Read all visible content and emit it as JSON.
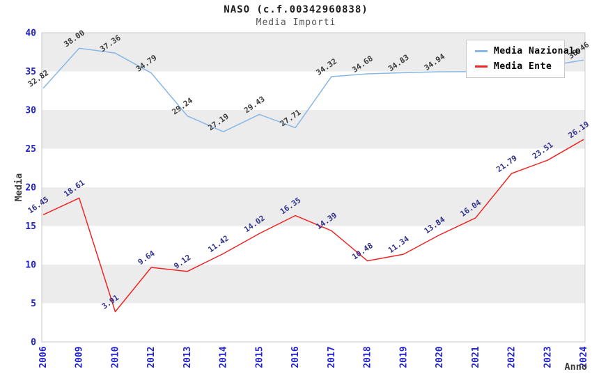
{
  "chart_data": {
    "type": "line",
    "title": "NASO (c.f.00342960838)",
    "subtitle": "Media Importi",
    "xlabel": "Anno",
    "ylabel": "Media",
    "ylim": [
      0,
      40
    ],
    "yticks": [
      0,
      5,
      10,
      15,
      20,
      25,
      30,
      35,
      40
    ],
    "categories": [
      "2006",
      "2009",
      "2010",
      "2012",
      "2013",
      "2014",
      "2015",
      "2016",
      "2017",
      "2018",
      "2019",
      "2020",
      "2021",
      "2022",
      "2023",
      "2024"
    ],
    "series": [
      {
        "name": "Media Nazionale",
        "color": "#88B6E6",
        "label_color": "#3C3C3C",
        "values": [
          32.82,
          38.0,
          37.36,
          34.79,
          29.24,
          27.19,
          29.43,
          27.71,
          34.32,
          34.68,
          34.83,
          34.94,
          34.97,
          34.95,
          35.7,
          36.46
        ],
        "value_labels": [
          "32.82",
          "38.00",
          "37.36",
          "34.79",
          "29.24",
          "27.19",
          "29.43",
          "27.71",
          "34.32",
          "34.68",
          "34.83",
          "34.94",
          "",
          "",
          "",
          "36.46"
        ]
      },
      {
        "name": "Media Ente",
        "color": "#EE2525",
        "label_color": "#32328E",
        "values": [
          16.45,
          18.61,
          3.91,
          9.64,
          9.12,
          11.42,
          14.02,
          16.35,
          14.39,
          10.48,
          11.34,
          13.84,
          16.04,
          21.79,
          23.51,
          26.19
        ],
        "value_labels": [
          "16.45",
          "18.61",
          "3.91",
          "9.64",
          "9.12",
          "11.42",
          "14.02",
          "16.35",
          "14.39",
          "10.48",
          "11.34",
          "13.84",
          "16.04",
          "21.79",
          "23.51",
          "26.19"
        ]
      }
    ],
    "legend_position": "top-right",
    "grid": "alternating-bands",
    "band_color": "#ECECEC",
    "gray_bands": [
      [
        5,
        10
      ],
      [
        15,
        20
      ],
      [
        25,
        30
      ],
      [
        35,
        40
      ]
    ],
    "tick_color": "#2222CC",
    "axis_title_color": "#3C3C3C",
    "border_color": "#C8C8C8",
    "background": "#FFFFFF"
  }
}
